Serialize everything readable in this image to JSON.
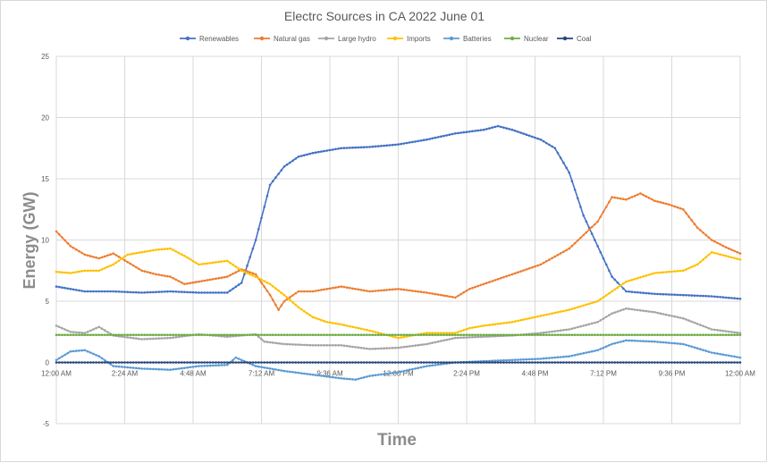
{
  "chart_data": {
    "type": "line",
    "title": "Electrc Sources in CA 2022 June 01",
    "xlabel": "Time",
    "ylabel": "Energy (GW)",
    "ylim": [
      -5,
      25
    ],
    "yticks": [
      -5,
      0,
      5,
      10,
      15,
      20,
      25
    ],
    "xlim": [
      0,
      24
    ],
    "x_unit": "hours",
    "xticks": [
      {
        "x": 0,
        "label": "12:00 AM"
      },
      {
        "x": 2.4,
        "label": "2:24 AM"
      },
      {
        "x": 4.8,
        "label": "4:48 AM"
      },
      {
        "x": 7.2,
        "label": "7:12 AM"
      },
      {
        "x": 9.6,
        "label": "9:36 AM"
      },
      {
        "x": 12,
        "label": "12:00 PM"
      },
      {
        "x": 14.4,
        "label": "2:24 PM"
      },
      {
        "x": 16.8,
        "label": "4:48 PM"
      },
      {
        "x": 19.2,
        "label": "7:12 PM"
      },
      {
        "x": 21.6,
        "label": "9:36 PM"
      },
      {
        "x": 24,
        "label": "12:00 AM"
      }
    ],
    "grid": true,
    "legend_position": "top",
    "series": [
      {
        "name": "Renewables",
        "color": "#4472c4",
        "points": [
          [
            0,
            6.2
          ],
          [
            1,
            5.8
          ],
          [
            2,
            5.8
          ],
          [
            3,
            5.7
          ],
          [
            4,
            5.8
          ],
          [
            5,
            5.7
          ],
          [
            6,
            5.7
          ],
          [
            6.5,
            6.5
          ],
          [
            7,
            10
          ],
          [
            7.5,
            14.5
          ],
          [
            8,
            16
          ],
          [
            8.5,
            16.8
          ],
          [
            9,
            17.1
          ],
          [
            10,
            17.5
          ],
          [
            11,
            17.6
          ],
          [
            12,
            17.8
          ],
          [
            13,
            18.2
          ],
          [
            14,
            18.7
          ],
          [
            15,
            19.0
          ],
          [
            15.5,
            19.3
          ],
          [
            16,
            19.0
          ],
          [
            17,
            18.2
          ],
          [
            17.5,
            17.5
          ],
          [
            18,
            15.5
          ],
          [
            18.5,
            12
          ],
          [
            19,
            9.5
          ],
          [
            19.5,
            7
          ],
          [
            20,
            5.8
          ],
          [
            21,
            5.6
          ],
          [
            22,
            5.5
          ],
          [
            23,
            5.4
          ],
          [
            24,
            5.2
          ]
        ]
      },
      {
        "name": "Natural gas",
        "color": "#ed7d31",
        "points": [
          [
            0,
            10.7
          ],
          [
            0.5,
            9.5
          ],
          [
            1,
            8.8
          ],
          [
            1.5,
            8.5
          ],
          [
            2,
            8.9
          ],
          [
            2.5,
            8.2
          ],
          [
            3,
            7.5
          ],
          [
            3.5,
            7.2
          ],
          [
            4,
            7.0
          ],
          [
            4.5,
            6.4
          ],
          [
            5,
            6.6
          ],
          [
            6,
            7.0
          ],
          [
            6.5,
            7.6
          ],
          [
            7,
            7.2
          ],
          [
            7.5,
            5.5
          ],
          [
            7.8,
            4.3
          ],
          [
            8,
            5.0
          ],
          [
            8.5,
            5.8
          ],
          [
            9,
            5.8
          ],
          [
            9.5,
            6.0
          ],
          [
            10,
            6.2
          ],
          [
            11,
            5.8
          ],
          [
            12,
            6.0
          ],
          [
            13,
            5.7
          ],
          [
            13.5,
            5.5
          ],
          [
            14,
            5.3
          ],
          [
            14.5,
            6.0
          ],
          [
            15,
            6.4
          ],
          [
            16,
            7.2
          ],
          [
            17,
            8.0
          ],
          [
            18,
            9.3
          ],
          [
            19,
            11.5
          ],
          [
            19.5,
            13.5
          ],
          [
            20,
            13.3
          ],
          [
            20.5,
            13.8
          ],
          [
            21,
            13.2
          ],
          [
            21.5,
            12.9
          ],
          [
            22,
            12.5
          ],
          [
            22.5,
            11.0
          ],
          [
            23,
            10.0
          ],
          [
            23.5,
            9.4
          ],
          [
            24,
            8.9
          ]
        ]
      },
      {
        "name": "Large hydro",
        "color": "#a5a5a5",
        "points": [
          [
            0,
            3.0
          ],
          [
            0.5,
            2.5
          ],
          [
            1,
            2.4
          ],
          [
            1.5,
            2.9
          ],
          [
            2,
            2.2
          ],
          [
            3,
            1.9
          ],
          [
            4,
            2.0
          ],
          [
            5,
            2.3
          ],
          [
            6,
            2.1
          ],
          [
            7,
            2.3
          ],
          [
            7.3,
            1.7
          ],
          [
            8,
            1.5
          ],
          [
            9,
            1.4
          ],
          [
            10,
            1.4
          ],
          [
            11,
            1.1
          ],
          [
            12,
            1.2
          ],
          [
            13,
            1.5
          ],
          [
            14,
            2.0
          ],
          [
            15,
            2.1
          ],
          [
            16,
            2.2
          ],
          [
            17,
            2.4
          ],
          [
            18,
            2.7
          ],
          [
            19,
            3.3
          ],
          [
            19.5,
            4.0
          ],
          [
            20,
            4.4
          ],
          [
            21,
            4.1
          ],
          [
            22,
            3.6
          ],
          [
            23,
            2.7
          ],
          [
            24,
            2.4
          ]
        ]
      },
      {
        "name": "Imports",
        "color": "#ffc000",
        "points": [
          [
            0,
            7.4
          ],
          [
            0.5,
            7.3
          ],
          [
            1,
            7.5
          ],
          [
            1.5,
            7.5
          ],
          [
            2,
            8.0
          ],
          [
            2.5,
            8.8
          ],
          [
            3,
            9.0
          ],
          [
            3.5,
            9.2
          ],
          [
            4,
            9.3
          ],
          [
            4.5,
            8.7
          ],
          [
            5,
            8.0
          ],
          [
            6,
            8.3
          ],
          [
            6.5,
            7.5
          ],
          [
            7,
            7.0
          ],
          [
            7.5,
            6.4
          ],
          [
            8,
            5.5
          ],
          [
            8.5,
            4.5
          ],
          [
            9,
            3.7
          ],
          [
            9.5,
            3.3
          ],
          [
            10,
            3.1
          ],
          [
            11,
            2.6
          ],
          [
            12,
            2.0
          ],
          [
            13,
            2.4
          ],
          [
            14,
            2.4
          ],
          [
            14.5,
            2.8
          ],
          [
            15,
            3.0
          ],
          [
            16,
            3.3
          ],
          [
            17,
            3.8
          ],
          [
            18,
            4.3
          ],
          [
            19,
            5.0
          ],
          [
            19.5,
            5.8
          ],
          [
            20,
            6.6
          ],
          [
            21,
            7.3
          ],
          [
            22,
            7.5
          ],
          [
            22.5,
            8.0
          ],
          [
            23,
            9.0
          ],
          [
            24,
            8.4
          ]
        ]
      },
      {
        "name": "Batteries",
        "color": "#5b9bd5",
        "points": [
          [
            0,
            0.2
          ],
          [
            0.5,
            0.9
          ],
          [
            1,
            1.0
          ],
          [
            1.5,
            0.5
          ],
          [
            2,
            -0.3
          ],
          [
            3,
            -0.5
          ],
          [
            4,
            -0.6
          ],
          [
            5,
            -0.3
          ],
          [
            6,
            -0.2
          ],
          [
            6.3,
            0.4
          ],
          [
            7,
            -0.3
          ],
          [
            8,
            -0.7
          ],
          [
            9,
            -1.0
          ],
          [
            10,
            -1.3
          ],
          [
            10.5,
            -1.4
          ],
          [
            11,
            -1.1
          ],
          [
            12,
            -0.8
          ],
          [
            13,
            -0.3
          ],
          [
            14,
            0.0
          ],
          [
            15,
            0.1
          ],
          [
            16,
            0.2
          ],
          [
            17,
            0.3
          ],
          [
            18,
            0.5
          ],
          [
            19,
            1.0
          ],
          [
            19.5,
            1.5
          ],
          [
            20,
            1.8
          ],
          [
            21,
            1.7
          ],
          [
            22,
            1.5
          ],
          [
            23,
            0.8
          ],
          [
            24,
            0.4
          ]
        ]
      },
      {
        "name": "Nuclear",
        "color": "#70ad47",
        "points": [
          [
            0,
            2.25
          ],
          [
            6,
            2.25
          ],
          [
            12,
            2.25
          ],
          [
            18,
            2.25
          ],
          [
            24,
            2.25
          ]
        ]
      },
      {
        "name": "Coal",
        "color": "#264478",
        "points": [
          [
            0,
            0.0
          ],
          [
            6,
            0.0
          ],
          [
            12,
            0.0
          ],
          [
            18,
            0.0
          ],
          [
            24,
            0.0
          ]
        ]
      }
    ]
  }
}
